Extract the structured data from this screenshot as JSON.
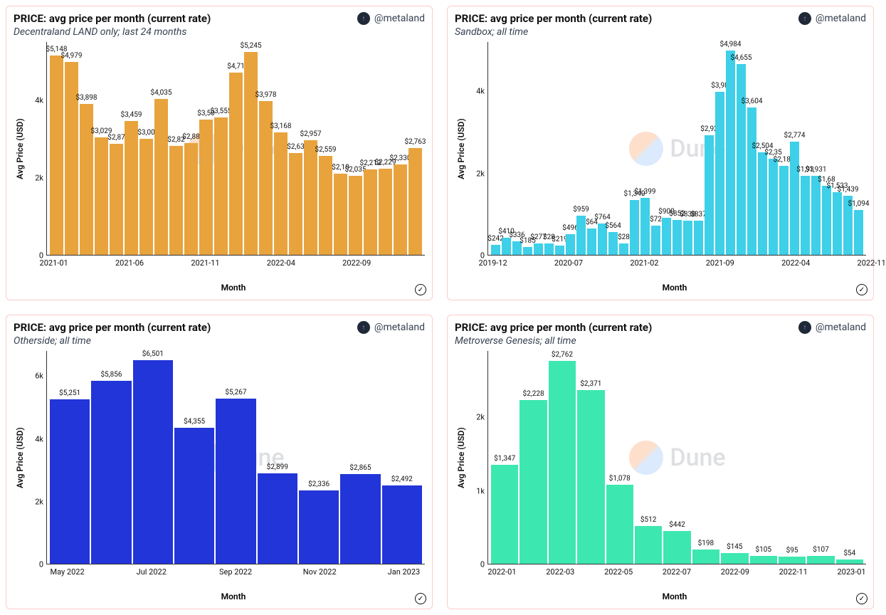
{
  "author_handle": "@metaland",
  "watermark_text": "Dune",
  "charts": [
    {
      "title": "PRICE: avg price per month (current rate)",
      "subtitle": "Decentraland LAND only; last 24 months",
      "type": "bar",
      "bar_color": "#e8a33d",
      "ylabel": "Avg Price (USD)",
      "xlabel": "Month",
      "ymax": 5500,
      "yticks": [
        {
          "v": 0,
          "l": "0"
        },
        {
          "v": 2000,
          "l": "2k"
        },
        {
          "v": 4000,
          "l": "4k"
        }
      ],
      "xticks": [
        {
          "i": 0,
          "l": "2021-01"
        },
        {
          "i": 5,
          "l": "2021-06"
        },
        {
          "i": 10,
          "l": "2021-11"
        },
        {
          "i": 15,
          "l": "2022-04"
        },
        {
          "i": 20,
          "l": "2022-09"
        }
      ],
      "bars": [
        {
          "v": 5148,
          "l": "$5,148"
        },
        {
          "v": 4979,
          "l": "$4,979"
        },
        {
          "v": 3898,
          "l": "$3,898"
        },
        {
          "v": 3029,
          "l": "$3,029"
        },
        {
          "v": 2870,
          "l": "$2,87"
        },
        {
          "v": 3459,
          "l": "$3,459"
        },
        {
          "v": 3000,
          "l": "$3,00"
        },
        {
          "v": 4035,
          "l": "$4,035"
        },
        {
          "v": 2820,
          "l": "$2,82"
        },
        {
          "v": 2880,
          "l": "$2,88"
        },
        {
          "v": 3500,
          "l": "$3,50"
        },
        {
          "v": 3555,
          "l": "$3,555"
        },
        {
          "v": 4710,
          "l": "$4,71"
        },
        {
          "v": 5245,
          "l": "$5,245"
        },
        {
          "v": 3978,
          "l": "$3,978"
        },
        {
          "v": 3168,
          "l": "$3,168"
        },
        {
          "v": 2630,
          "l": "$2,63"
        },
        {
          "v": 2957,
          "l": "$2,957"
        },
        {
          "v": 2559,
          "l": "$2,559"
        },
        {
          "v": 2100,
          "l": "$2,10"
        },
        {
          "v": 2035,
          "l": "$2,035"
        },
        {
          "v": 2212,
          "l": "$2,212"
        },
        {
          "v": 2229,
          "l": "$2,229"
        },
        {
          "v": 2330,
          "l": "$2,330"
        },
        {
          "v": 2763,
          "l": "$2,763"
        }
      ]
    },
    {
      "title": "PRICE: avg price per month (current rate)",
      "subtitle": "Sandbox; all time",
      "type": "bar",
      "bar_color": "#3dd0e8",
      "ylabel": "Avg Price (USD)",
      "xlabel": "Month",
      "ymax": 5200,
      "yticks": [
        {
          "v": 0,
          "l": "0"
        },
        {
          "v": 2000,
          "l": "2k"
        },
        {
          "v": 4000,
          "l": "4k"
        }
      ],
      "xticks": [
        {
          "i": 0,
          "l": "2019-12"
        },
        {
          "i": 7,
          "l": "2020-07"
        },
        {
          "i": 14,
          "l": "2021-02"
        },
        {
          "i": 21,
          "l": "2021-09"
        },
        {
          "i": 28,
          "l": "2022-04"
        },
        {
          "i": 35,
          "l": "2022-11"
        }
      ],
      "bars": [
        {
          "v": 242,
          "l": "$242"
        },
        {
          "v": 410,
          "l": "$410"
        },
        {
          "v": 336,
          "l": "$336"
        },
        {
          "v": 185,
          "l": "$185"
        },
        {
          "v": 277,
          "l": "$277"
        },
        {
          "v": 280,
          "l": "$28"
        },
        {
          "v": 219,
          "l": "$219"
        },
        {
          "v": 496,
          "l": "$496"
        },
        {
          "v": 959,
          "l": "$959"
        },
        {
          "v": 640,
          "l": "$64"
        },
        {
          "v": 764,
          "l": "$764"
        },
        {
          "v": 564,
          "l": "$564"
        },
        {
          "v": 280,
          "l": "$28"
        },
        {
          "v": 1340,
          "l": "$1,340"
        },
        {
          "v": 1399,
          "l": "$1,399"
        },
        {
          "v": 720,
          "l": "$72"
        },
        {
          "v": 900,
          "l": "$900"
        },
        {
          "v": 852,
          "l": "$852"
        },
        {
          "v": 838,
          "l": "$838"
        },
        {
          "v": 837,
          "l": "$837"
        },
        {
          "v": 2920,
          "l": "$2,92"
        },
        {
          "v": 3980,
          "l": "$3,98"
        },
        {
          "v": 4984,
          "l": "$4,984"
        },
        {
          "v": 4655,
          "l": "$4,655"
        },
        {
          "v": 3604,
          "l": "$3,604"
        },
        {
          "v": 2504,
          "l": "$2,504"
        },
        {
          "v": 2350,
          "l": "$2,35"
        },
        {
          "v": 2182,
          "l": "$2,182"
        },
        {
          "v": 2774,
          "l": "$2,774"
        },
        {
          "v": 1930,
          "l": "$1,93"
        },
        {
          "v": 1931,
          "l": "$1,931"
        },
        {
          "v": 1680,
          "l": "$1,68"
        },
        {
          "v": 1533,
          "l": "$1,533"
        },
        {
          "v": 1439,
          "l": "$1,439"
        },
        {
          "v": 1094,
          "l": "$1,094"
        }
      ]
    },
    {
      "title": "PRICE: avg price per month (current rate)",
      "subtitle": "Otherside; all time",
      "type": "bar",
      "bar_color": "#2235d9",
      "ylabel": "Avg Price (USD)",
      "xlabel": "Month",
      "ymax": 6800,
      "yticks": [
        {
          "v": 0,
          "l": "0"
        },
        {
          "v": 2000,
          "l": "2k"
        },
        {
          "v": 4000,
          "l": "4k"
        },
        {
          "v": 6000,
          "l": "6k"
        }
      ],
      "xticks": [
        {
          "i": 0,
          "l": "May 2022"
        },
        {
          "i": 2,
          "l": "Jul 2022"
        },
        {
          "i": 4,
          "l": "Sep 2022"
        },
        {
          "i": 6,
          "l": "Nov 2022"
        },
        {
          "i": 8,
          "l": "Jan 2023"
        }
      ],
      "bars": [
        {
          "v": 5251,
          "l": "$5,251"
        },
        {
          "v": 5856,
          "l": "$5,856"
        },
        {
          "v": 6501,
          "l": "$6,501"
        },
        {
          "v": 4355,
          "l": "$4,355"
        },
        {
          "v": 5267,
          "l": "$5,267"
        },
        {
          "v": 2899,
          "l": "$2,899"
        },
        {
          "v": 2336,
          "l": "$2,336"
        },
        {
          "v": 2865,
          "l": "$2,865"
        },
        {
          "v": 2492,
          "l": "$2,492"
        }
      ]
    },
    {
      "title": "PRICE: avg price per month (current rate)",
      "subtitle": "Metroverse Genesis; all time",
      "type": "bar",
      "bar_color": "#3de8b0",
      "ylabel": "Avg Price (USD)",
      "xlabel": "Month",
      "ymax": 2900,
      "yticks": [
        {
          "v": 0,
          "l": "0"
        },
        {
          "v": 1000,
          "l": "1k"
        },
        {
          "v": 2000,
          "l": "2k"
        }
      ],
      "xticks": [
        {
          "i": 0,
          "l": "2022-01"
        },
        {
          "i": 2,
          "l": "2022-03"
        },
        {
          "i": 4,
          "l": "2022-05"
        },
        {
          "i": 6,
          "l": "2022-07"
        },
        {
          "i": 8,
          "l": "2022-09"
        },
        {
          "i": 10,
          "l": "2022-11"
        },
        {
          "i": 12,
          "l": "2023-01"
        }
      ],
      "bars": [
        {
          "v": 1347,
          "l": "$1,347"
        },
        {
          "v": 2228,
          "l": "$2,228"
        },
        {
          "v": 2762,
          "l": "$2,762"
        },
        {
          "v": 2371,
          "l": "$2,371"
        },
        {
          "v": 1078,
          "l": "$1,078"
        },
        {
          "v": 512,
          "l": "$512"
        },
        {
          "v": 442,
          "l": "$442"
        },
        {
          "v": 198,
          "l": "$198"
        },
        {
          "v": 145,
          "l": "$145"
        },
        {
          "v": 105,
          "l": "$105"
        },
        {
          "v": 95,
          "l": "$95"
        },
        {
          "v": 107,
          "l": "$107"
        },
        {
          "v": 54,
          "l": "$54"
        }
      ]
    }
  ]
}
